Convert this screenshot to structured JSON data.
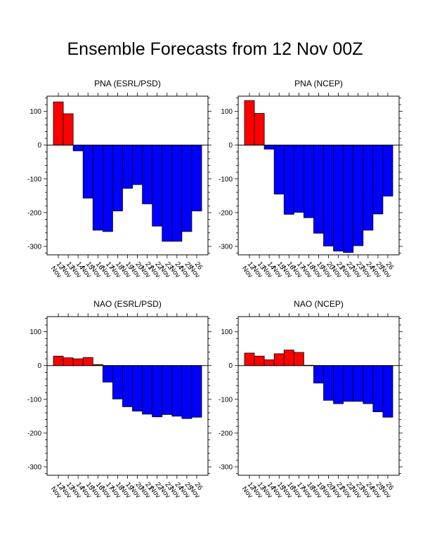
{
  "title": "Ensemble Forecasts from 12 Nov 00Z",
  "colors": {
    "positive": "#ff0000",
    "negative": "#0000ff",
    "outline": "#000000"
  },
  "chart_data": [
    {
      "type": "bar",
      "title": "PNA (ESRL/PSD)",
      "categories": [
        "12 Nov",
        "13 Nov",
        "14 Nov",
        "15 Nov",
        "16 Nov",
        "17 Nov",
        "18 Nov",
        "19 Nov",
        "20 Nov",
        "21 Nov",
        "22 Nov",
        "23 Nov",
        "24 Nov",
        "25 Nov",
        "26 Nov"
      ],
      "values": [
        128,
        93,
        -17,
        -157,
        -252,
        -256,
        -195,
        -128,
        -117,
        -174,
        -240,
        -285,
        -285,
        -256,
        -195
      ],
      "ylim": [
        -325,
        145
      ],
      "yticks": [
        -300,
        -200,
        -100,
        0,
        100
      ],
      "grid": false
    },
    {
      "type": "bar",
      "title": "PNA (NCEP)",
      "categories": [
        "12 Nov",
        "13 Nov",
        "14 Nov",
        "15 Nov",
        "16 Nov",
        "17 Nov",
        "18 Nov",
        "19 Nov",
        "20 Nov",
        "21 Nov",
        "22 Nov",
        "23 Nov",
        "24 Nov",
        "25 Nov",
        "26 Nov"
      ],
      "values": [
        132,
        94,
        -12,
        -145,
        -205,
        -199,
        -215,
        -261,
        -299,
        -314,
        -318,
        -298,
        -252,
        -204,
        -151
      ],
      "ylim": [
        -325,
        145
      ],
      "yticks": [
        -300,
        -200,
        -100,
        0,
        100
      ],
      "grid": false
    },
    {
      "type": "bar",
      "title": "NAO (ESRL/PSD)",
      "categories": [
        "12 Nov",
        "13 Nov",
        "14 Nov",
        "15 Nov",
        "16 Nov",
        "17 Nov",
        "18 Nov",
        "19 Nov",
        "20 Nov",
        "21 Nov",
        "22 Nov",
        "23 Nov",
        "24 Nov",
        "25 Nov",
        "26 Nov"
      ],
      "values": [
        28,
        23,
        20,
        24,
        3,
        -49,
        -99,
        -122,
        -135,
        -144,
        -152,
        -145,
        -150,
        -157,
        -153
      ],
      "ylim": [
        -325,
        145
      ],
      "yticks": [
        -300,
        -200,
        -100,
        0,
        100
      ],
      "grid": false
    },
    {
      "type": "bar",
      "title": "NAO (NCEP)",
      "categories": [
        "12 Nov",
        "13 Nov",
        "14 Nov",
        "15 Nov",
        "16 Nov",
        "17 Nov",
        "18 Nov",
        "19 Nov",
        "20 Nov",
        "21 Nov",
        "22 Nov",
        "23 Nov",
        "24 Nov",
        "25 Nov",
        "26 Nov"
      ],
      "values": [
        37,
        28,
        17,
        35,
        46,
        39,
        1,
        -52,
        -103,
        -113,
        -106,
        -106,
        -113,
        -137,
        -153
      ],
      "ylim": [
        -325,
        145
      ],
      "yticks": [
        -300,
        -200,
        -100,
        0,
        100
      ],
      "grid": false
    }
  ]
}
